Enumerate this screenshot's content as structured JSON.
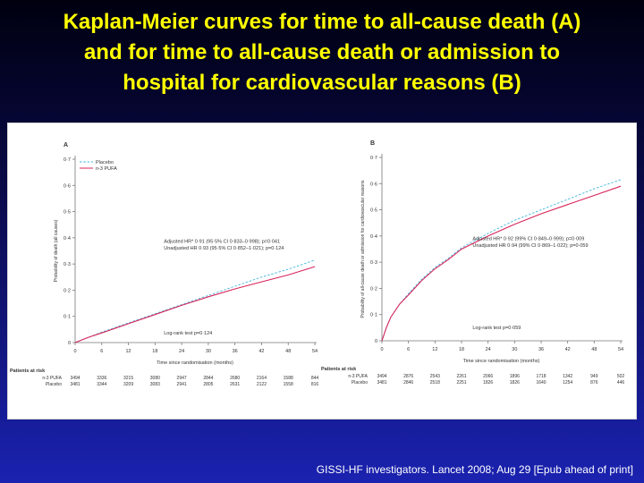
{
  "slide": {
    "title_lines": [
      "Kaplan-Meier curves for time to all-cause death (A)",
      "and for time to all-cause death or admission to",
      "hospital for cardiovascular reasons (B)"
    ],
    "citation": "GISSI-HF investigators. Lancet 2008; Aug 29 [Epub ahead of print]"
  },
  "colors": {
    "placebo": "#3fb6e0",
    "pufa": "#d7245a",
    "title": "#ffff00"
  },
  "chart_data": [
    {
      "type": "line",
      "panel_label": "A",
      "ylabel": "Probability of death (all causes)",
      "xlabel": "Time since randomisation (months)",
      "xlim": [
        0,
        54
      ],
      "ylim": [
        0,
        0.7
      ],
      "x_ticks": [
        0,
        6,
        12,
        18,
        24,
        30,
        36,
        42,
        48,
        54
      ],
      "y_ticks": [
        0,
        0.1,
        0.2,
        0.3,
        0.4,
        0.5,
        0.6,
        0.7
      ],
      "y_tick_labels": [
        "0",
        "0·1",
        "0·2",
        "0·3",
        "0·4",
        "0·5",
        "0·6",
        "0·7"
      ],
      "legend": [
        "Placebo",
        "n-3 PUFA"
      ],
      "legend_position": "top-left",
      "series": [
        {
          "name": "Placebo",
          "style": "dashed",
          "x": [
            0,
            3,
            6,
            12,
            18,
            24,
            30,
            36,
            42,
            48,
            54
          ],
          "y": [
            0,
            0.02,
            0.04,
            0.075,
            0.11,
            0.145,
            0.18,
            0.215,
            0.25,
            0.28,
            0.315
          ]
        },
        {
          "name": "n-3 PUFA",
          "style": "solid",
          "x": [
            0,
            3,
            6,
            12,
            18,
            24,
            30,
            36,
            42,
            48,
            54
          ],
          "y": [
            0,
            0.02,
            0.037,
            0.072,
            0.107,
            0.142,
            0.175,
            0.205,
            0.232,
            0.258,
            0.29
          ]
        }
      ],
      "annotations": [
        "Adjusted HR* 0·91 (95·5% CI 0·833–0·998); p=0·041",
        "Unadjusted HR 0·93 (95·5% CI 0·852–1·021); p=0·124"
      ],
      "logrank": "Log-rank test p=0·124",
      "risk_table": {
        "title": "Patients at risk",
        "rows": [
          {
            "label": "n-3 PUFA",
            "values": [
              "3494",
              "3336",
              "3215",
              "3080",
              "2947",
              "2844",
              "2680",
              "2164",
              "1588",
              "844"
            ]
          },
          {
            "label": "Placebo",
            "values": [
              "3481",
              "3344",
              "3209",
              "3083",
              "2941",
              "2805",
              "2631",
              "2122",
              "1558",
              "816"
            ]
          }
        ]
      }
    },
    {
      "type": "line",
      "panel_label": "B",
      "ylabel": "Probability of all-cause death or admission for cardiovascular reasons",
      "xlabel": "Time since randomisation (months)",
      "xlim": [
        0,
        54
      ],
      "ylim": [
        0,
        0.7
      ],
      "x_ticks": [
        0,
        6,
        12,
        18,
        24,
        30,
        36,
        42,
        48,
        54
      ],
      "y_ticks": [
        0,
        0.1,
        0.2,
        0.3,
        0.4,
        0.5,
        0.6,
        0.7
      ],
      "y_tick_labels": [
        "0",
        "0·1",
        "0·2",
        "0·3",
        "0·4",
        "0·5",
        "0·6",
        "0·7"
      ],
      "series": [
        {
          "name": "Placebo",
          "style": "dashed",
          "x": [
            0,
            1,
            2,
            4,
            6,
            9,
            12,
            15,
            18,
            24,
            30,
            36,
            42,
            48,
            54
          ],
          "y": [
            0,
            0.05,
            0.09,
            0.14,
            0.18,
            0.235,
            0.28,
            0.315,
            0.355,
            0.41,
            0.46,
            0.5,
            0.54,
            0.58,
            0.615
          ]
        },
        {
          "name": "n-3 PUFA",
          "style": "solid",
          "x": [
            0,
            1,
            2,
            4,
            6,
            9,
            12,
            15,
            18,
            24,
            30,
            36,
            42,
            48,
            54
          ],
          "y": [
            0,
            0.05,
            0.09,
            0.14,
            0.175,
            0.23,
            0.275,
            0.31,
            0.35,
            0.4,
            0.445,
            0.485,
            0.52,
            0.555,
            0.59
          ]
        }
      ],
      "annotations": [
        "Adjusted HR* 0·92 (99% CI 0·849–0·999); p=0·009",
        "Unadjusted HR 0·94 (99% CI 0·869–1·022); p=0·059"
      ],
      "logrank": "Log-rank test p=0·059",
      "risk_table": {
        "title": "Patients at risk",
        "rows": [
          {
            "label": "n-3 PUFA",
            "values": [
              "3494",
              "2876",
              "2543",
              "2261",
              "2066",
              "1896",
              "1718",
              "1342",
              "949",
              "502"
            ]
          },
          {
            "label": "Placebo",
            "values": [
              "3481",
              "2846",
              "2518",
              "2251",
              "1826",
              "1826",
              "1640",
              "1254",
              "876",
              "446"
            ]
          }
        ]
      }
    }
  ]
}
